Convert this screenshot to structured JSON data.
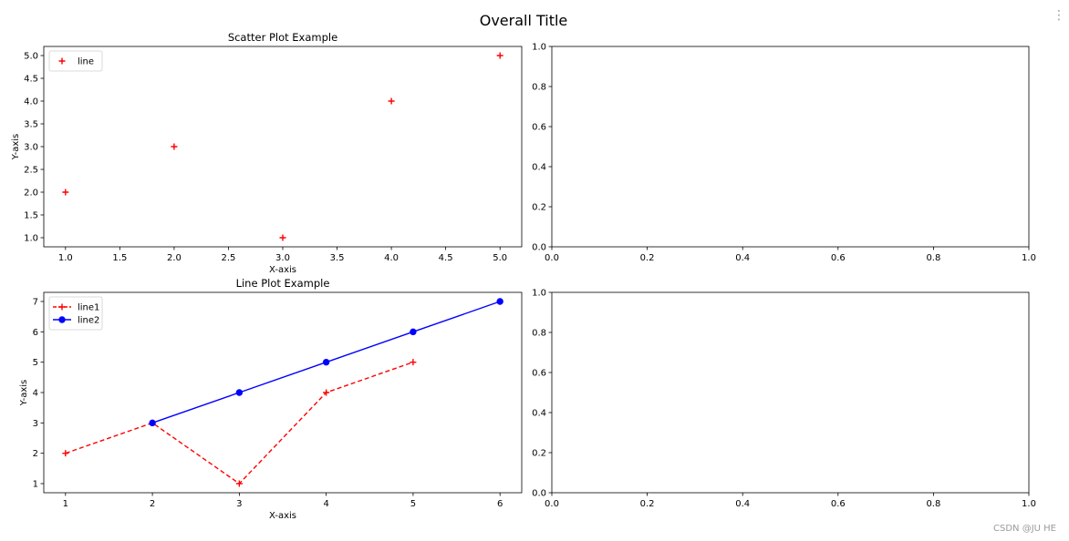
{
  "figure": {
    "suptitle": "Overall Title",
    "watermark": "CSDN @JU HE",
    "menu_glyph": "⋮"
  },
  "chart_data": [
    {
      "type": "scatter",
      "title": "Scatter Plot Example",
      "xlabel": "X-axis",
      "ylabel": "Y-axis",
      "xlim": [
        0.8,
        5.2
      ],
      "ylim": [
        0.8,
        5.2
      ],
      "xticks": [
        1.0,
        1.5,
        2.0,
        2.5,
        3.0,
        3.5,
        4.0,
        4.5,
        5.0
      ],
      "yticks": [
        1.0,
        1.5,
        2.0,
        2.5,
        3.0,
        3.5,
        4.0,
        4.5,
        5.0
      ],
      "xtick_labels": [
        "1.0",
        "1.5",
        "2.0",
        "2.5",
        "3.0",
        "3.5",
        "4.0",
        "4.5",
        "5.0"
      ],
      "ytick_labels": [
        "1.0",
        "1.5",
        "2.0",
        "2.5",
        "3.0",
        "3.5",
        "4.0",
        "4.5",
        "5.0"
      ],
      "grid": false,
      "legend": "upper-left",
      "series": [
        {
          "name": "line",
          "color": "#ff0000",
          "marker": "plus",
          "linestyle": "none",
          "x": [
            1,
            2,
            3,
            4,
            5
          ],
          "y": [
            2,
            3,
            1,
            4,
            5
          ]
        }
      ]
    },
    {
      "type": "empty",
      "xlim": [
        0,
        1
      ],
      "ylim": [
        0,
        1
      ],
      "xticks": [
        0,
        0.2,
        0.4,
        0.6,
        0.8,
        1.0
      ],
      "yticks": [
        0,
        0.2,
        0.4,
        0.6,
        0.8,
        1.0
      ],
      "xtick_labels": [
        "0.0",
        "0.2",
        "0.4",
        "0.6",
        "0.8",
        "1.0"
      ],
      "ytick_labels": [
        "0.0",
        "0.2",
        "0.4",
        "0.6",
        "0.8",
        "1.0"
      ],
      "grid": false,
      "series": []
    },
    {
      "type": "line",
      "title": "Line Plot Example",
      "xlabel": "X-axis",
      "ylabel": "Y-axis",
      "xlim": [
        0.75,
        6.25
      ],
      "ylim": [
        0.7,
        7.3
      ],
      "xticks": [
        1,
        2,
        3,
        4,
        5,
        6
      ],
      "yticks": [
        1,
        2,
        3,
        4,
        5,
        6,
        7
      ],
      "xtick_labels": [
        "1",
        "2",
        "3",
        "4",
        "5",
        "6"
      ],
      "ytick_labels": [
        "1",
        "2",
        "3",
        "4",
        "5",
        "6",
        "7"
      ],
      "grid": false,
      "legend": "upper-left",
      "series": [
        {
          "name": "line1",
          "color": "#ff0000",
          "marker": "plus",
          "linestyle": "dashed",
          "x": [
            1,
            2,
            3,
            4,
            5
          ],
          "y": [
            2,
            3,
            1,
            4,
            5
          ]
        },
        {
          "name": "line2",
          "color": "#0000ff",
          "marker": "circle",
          "linestyle": "solid",
          "x": [
            2,
            3,
            4,
            5,
            6
          ],
          "y": [
            3,
            4,
            5,
            6,
            7
          ]
        }
      ]
    },
    {
      "type": "empty",
      "xlim": [
        0,
        1
      ],
      "ylim": [
        0,
        1
      ],
      "xticks": [
        0,
        0.2,
        0.4,
        0.6,
        0.8,
        1.0
      ],
      "yticks": [
        0,
        0.2,
        0.4,
        0.6,
        0.8,
        1.0
      ],
      "xtick_labels": [
        "0.0",
        "0.2",
        "0.4",
        "0.6",
        "0.8",
        "1.0"
      ],
      "ytick_labels": [
        "0.0",
        "0.2",
        "0.4",
        "0.6",
        "0.8",
        "1.0"
      ],
      "grid": false,
      "series": []
    }
  ]
}
